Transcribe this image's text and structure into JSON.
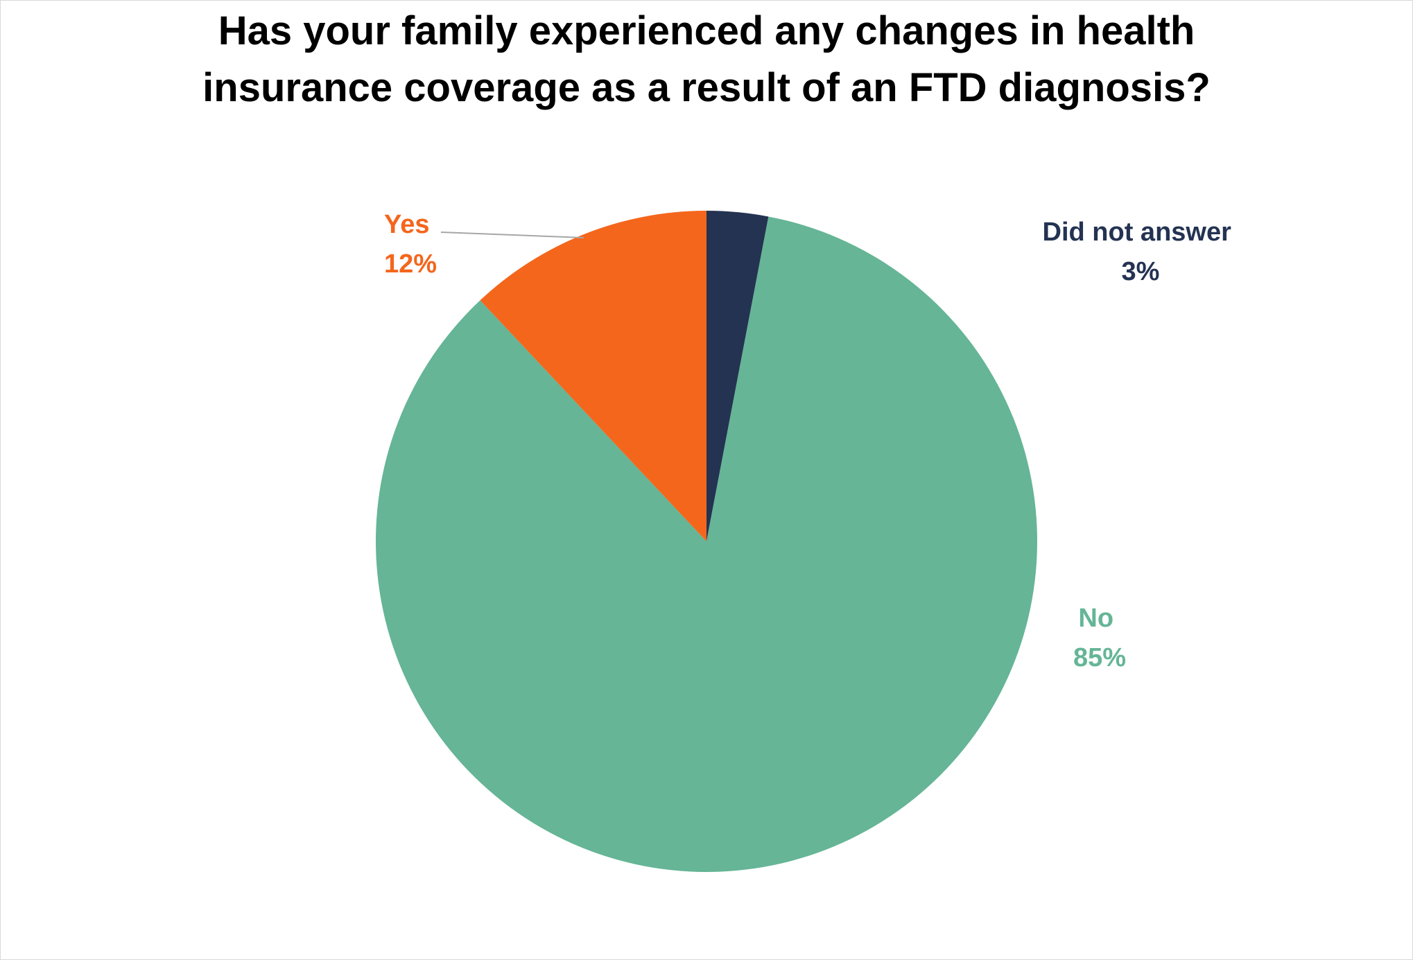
{
  "chart_data": {
    "type": "pie",
    "title_lines": [
      "Has your family experienced any changes in health",
      "insurance coverage as a result of an FTD diagnosis?"
    ],
    "slices": [
      {
        "key": "did-not-answer",
        "label": "Did not answer",
        "value": 3,
        "display": "3%",
        "color": "#243352"
      },
      {
        "key": "no",
        "label": "No",
        "value": 85,
        "display": "85%",
        "color": "#65b596"
      },
      {
        "key": "yes",
        "label": "Yes",
        "value": 12,
        "display": "12%",
        "color": "#f4661c"
      }
    ]
  }
}
